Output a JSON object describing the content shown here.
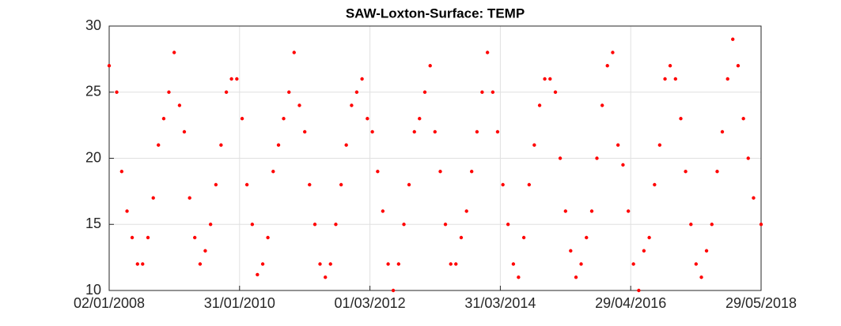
{
  "chart_data": {
    "type": "scatter",
    "title": "SAW-Loxton-Surface: TEMP",
    "color": "#ff0000",
    "grid": true,
    "xlim": [
      "02/01/2008",
      "29/05/2018"
    ],
    "xticks": [
      "02/01/2008",
      "31/01/2010",
      "01/03/2012",
      "31/03/2014",
      "29/04/2016",
      "29/05/2018"
    ],
    "ylim": [
      10,
      30
    ],
    "yticks": [
      10,
      15,
      20,
      25,
      30
    ],
    "x": [
      "02/01/2008",
      "15/02/2008",
      "15/03/2008",
      "15/04/2008",
      "15/05/2008",
      "15/06/2008",
      "15/07/2008",
      "15/08/2008",
      "15/09/2008",
      "15/10/2008",
      "15/11/2008",
      "15/12/2008",
      "15/01/2009",
      "15/02/2009",
      "15/03/2009",
      "15/04/2009",
      "15/05/2009",
      "15/06/2009",
      "15/07/2009",
      "15/08/2009",
      "15/09/2009",
      "15/10/2009",
      "15/11/2009",
      "15/12/2009",
      "15/01/2010",
      "15/02/2010",
      "15/03/2010",
      "15/04/2010",
      "15/05/2010",
      "15/06/2010",
      "15/07/2010",
      "15/08/2010",
      "15/09/2010",
      "15/10/2010",
      "15/11/2010",
      "15/12/2010",
      "15/01/2011",
      "15/02/2011",
      "15/03/2011",
      "15/04/2011",
      "15/05/2011",
      "15/06/2011",
      "15/07/2011",
      "15/08/2011",
      "15/09/2011",
      "15/10/2011",
      "15/11/2011",
      "15/12/2011",
      "15/01/2012",
      "15/02/2012",
      "15/03/2012",
      "15/04/2012",
      "15/05/2012",
      "15/06/2012",
      "15/07/2012",
      "15/08/2012",
      "15/09/2012",
      "15/10/2012",
      "15/11/2012",
      "15/12/2012",
      "15/01/2013",
      "15/02/2013",
      "15/03/2013",
      "15/04/2013",
      "15/05/2013",
      "15/06/2013",
      "15/07/2013",
      "15/08/2013",
      "15/09/2013",
      "15/10/2013",
      "15/11/2013",
      "15/12/2013",
      "15/01/2014",
      "15/02/2014",
      "15/03/2014",
      "15/04/2014",
      "15/05/2014",
      "15/06/2014",
      "15/07/2014",
      "15/08/2014",
      "15/09/2014",
      "15/10/2014",
      "15/11/2014",
      "15/12/2014",
      "15/01/2015",
      "15/02/2015",
      "15/03/2015",
      "15/04/2015",
      "15/05/2015",
      "15/06/2015",
      "15/07/2015",
      "15/08/2015",
      "15/09/2015",
      "15/10/2015",
      "15/11/2015",
      "15/12/2015",
      "15/01/2016",
      "15/02/2016",
      "15/03/2016",
      "15/04/2016",
      "15/05/2016",
      "15/06/2016",
      "15/07/2016",
      "15/08/2016",
      "15/09/2016",
      "15/10/2016",
      "15/11/2016",
      "15/12/2016",
      "15/01/2017",
      "15/02/2017",
      "15/03/2017",
      "15/04/2017",
      "15/05/2017",
      "15/06/2017",
      "15/07/2017",
      "15/08/2017",
      "15/09/2017",
      "15/10/2017",
      "15/11/2017",
      "15/12/2017",
      "15/01/2018",
      "15/02/2018",
      "15/03/2018",
      "15/04/2018",
      "29/05/2018"
    ],
    "values": [
      27,
      25,
      19,
      16,
      14,
      12,
      12,
      14,
      17,
      21,
      23,
      25,
      28,
      24,
      22,
      17,
      14,
      12,
      13,
      15,
      18,
      21,
      25,
      26,
      26,
      23,
      18,
      15,
      11.2,
      12,
      14,
      19,
      21,
      23,
      25,
      28,
      24,
      22,
      18,
      15,
      12,
      11,
      12,
      15,
      18,
      21,
      24,
      25,
      26,
      23,
      22,
      19,
      16,
      12,
      10,
      12,
      15,
      18,
      22,
      23,
      25,
      27,
      22,
      19,
      15,
      12,
      12,
      14,
      16,
      19,
      22,
      25,
      28,
      25,
      22,
      18,
      15,
      12,
      11,
      14,
      18,
      21,
      24,
      26,
      26,
      25,
      20,
      16,
      13,
      11,
      12,
      14,
      16,
      20,
      24,
      27,
      28,
      21,
      19.5,
      16,
      12,
      10,
      13,
      14,
      18,
      21,
      26,
      27,
      26,
      23,
      19,
      15,
      12,
      11,
      13,
      15,
      19,
      22,
      26,
      29,
      27,
      23,
      20,
      17,
      15
    ]
  }
}
